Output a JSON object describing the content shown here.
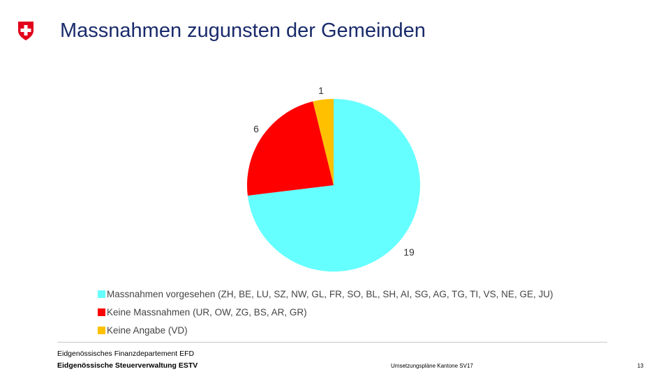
{
  "header": {
    "title": "Massnahmen zugunsten der Gemeinden"
  },
  "crest": {
    "icon": "swiss-crest-icon",
    "color": "#e2001a"
  },
  "chart_data": {
    "type": "pie",
    "title": "Massnahmen zugunsten der Gemeinden",
    "slices": [
      {
        "label": "Massnahmen vorgesehen (ZH, BE, LU, SZ, NW, GL, FR, SO, BL, SH, AI, SG, AG, TG, TI, VS, NE, GE, JU)",
        "value": 19,
        "data_label": "19",
        "color": "#66ffff"
      },
      {
        "label": "Keine Massnahmen (UR, OW, ZG, BS, AR, GR)",
        "value": 6,
        "data_label": "6",
        "color": "#ff0000"
      },
      {
        "label": "Keine Angabe (VD)",
        "value": 1,
        "data_label": "1",
        "color": "#ffc000"
      }
    ],
    "legend_position": "bottom-left"
  },
  "footer": {
    "department": "Eidgenössisches Finanzdepartement EFD",
    "office": "Eidgenössische Steuerverwaltung ESTV",
    "document": "Umsetzungspläne Kantone SV17",
    "page": "13"
  }
}
